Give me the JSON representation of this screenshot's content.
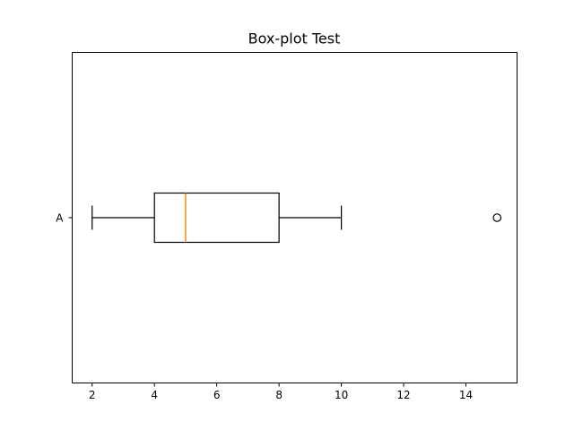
{
  "chart_data": {
    "type": "boxplot",
    "title": "Box-plot Test",
    "orientation": "horizontal",
    "xlabel": "",
    "ylabel": "",
    "xlim": [
      1.36,
      15.64
    ],
    "x_ticks": [
      2,
      4,
      6,
      8,
      10,
      12,
      14
    ],
    "categories": [
      "A"
    ],
    "boxes": [
      {
        "category": "A",
        "whisker_low": 2,
        "q1": 4,
        "median": 5,
        "q3": 8,
        "whisker_high": 10,
        "outliers": [
          15
        ]
      }
    ],
    "grid": false,
    "colors": {
      "median": "#ff7f0e",
      "box": "#000000",
      "axes": "#000000"
    }
  }
}
